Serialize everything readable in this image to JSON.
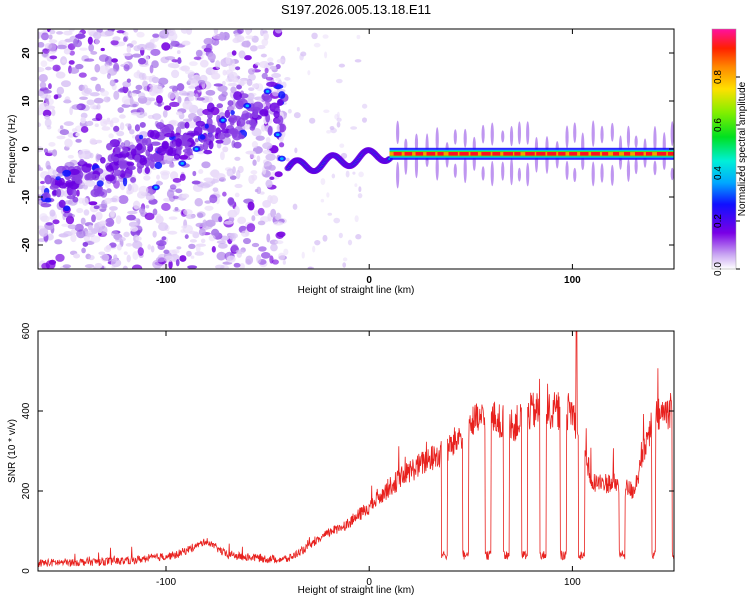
{
  "figure_title": "S197.2026.005.13.18.E11",
  "chart_data": [
    {
      "type": "heatmap",
      "title": "S197.2026.005.13.18.E11",
      "xlabel": "Height of straight line (km)",
      "ylabel": "Frequency (Hz)",
      "xlim": [
        -163,
        150
      ],
      "ylim": [
        -25,
        25
      ],
      "xticks": [
        -100,
        0,
        100
      ],
      "yticks": [
        -20,
        -10,
        0,
        10,
        20
      ],
      "colorbar": {
        "label": "Normalized spectral amplitude",
        "range": [
          0,
          1
        ],
        "ticks": [
          0.0,
          0.2,
          0.4,
          0.6,
          0.8
        ]
      },
      "features": {
        "noise_region_x": [
          -163,
          -42
        ],
        "ramp_x": [
          -160,
          -40
        ],
        "ramp_freq": [
          -9,
          10
        ],
        "transition_x": [
          -40,
          10
        ],
        "band_x": [
          10,
          150
        ],
        "band_freq": -1
      }
    },
    {
      "type": "line",
      "xlabel": "Height of straight line (km)",
      "ylabel": "SNR (10 * v/v)",
      "xlim": [
        -163,
        150
      ],
      "ylim": [
        0,
        600
      ],
      "xticks": [
        -100,
        0,
        100
      ],
      "yticks": [
        0,
        200,
        400,
        600
      ],
      "series_color": "#e8211e",
      "anchors": {
        "x": [
          -163,
          -120,
          -95,
          -80,
          -70,
          -50,
          -40,
          -30,
          -20,
          -10,
          0,
          10,
          20,
          30,
          35,
          40,
          50,
          60,
          70,
          80,
          90,
          100,
          110,
          120,
          130,
          140,
          150
        ],
        "snr": [
          20,
          25,
          40,
          75,
          40,
          30,
          30,
          60,
          95,
          120,
          160,
          210,
          250,
          280,
          290,
          310,
          370,
          385,
          360,
          400,
          400,
          400,
          220,
          220,
          200,
          380,
          410
        ]
      },
      "dropouts": [
        {
          "x": [
            35.5,
            38.5
          ],
          "snr": 40
        },
        {
          "x": [
            46,
            49
          ],
          "snr": 40
        },
        {
          "x": [
            57,
            60
          ],
          "snr": 40
        },
        {
          "x": [
            66,
            69
          ],
          "snr": 40
        },
        {
          "x": [
            75,
            78
          ],
          "snr": 40
        },
        {
          "x": [
            84,
            87
          ],
          "snr": 40
        },
        {
          "x": [
            94,
            97
          ],
          "snr": 40
        },
        {
          "x": [
            103,
            106
          ],
          "snr": 40
        },
        {
          "x": [
            123,
            126
          ],
          "snr": 40
        },
        {
          "x": [
            139,
            141
          ],
          "snr": 40
        },
        {
          "x": [
            149,
            150
          ],
          "snr": 40
        }
      ],
      "peak": {
        "x": 102,
        "snr": 600
      }
    }
  ]
}
